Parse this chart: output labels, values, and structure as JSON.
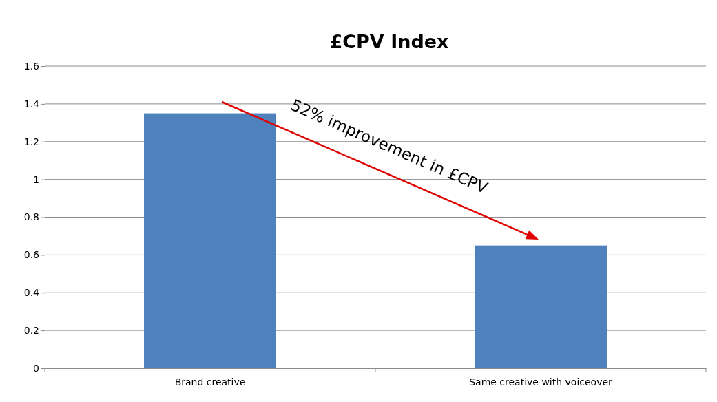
{
  "chart_data": {
    "type": "bar",
    "title": "£CPV Index",
    "categories": [
      "Brand creative",
      "Same creative with voiceover"
    ],
    "values": [
      1.35,
      0.65
    ],
    "color": "#4f81bd",
    "ylim": [
      0,
      1.6
    ],
    "yticks": [
      0,
      0.2,
      0.4,
      0.6,
      0.8,
      1,
      1.2,
      1.4,
      1.6
    ],
    "grid": "y",
    "annotations": [
      "52% improvement in £CPV"
    ]
  }
}
